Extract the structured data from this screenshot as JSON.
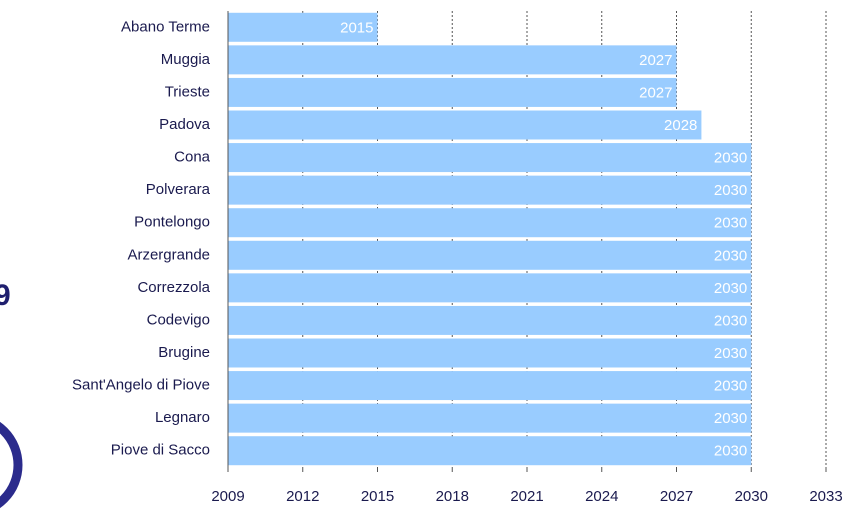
{
  "chart_data": {
    "type": "bar",
    "orientation": "horizontal",
    "categories": [
      "Abano Terme",
      "Muggia",
      "Trieste",
      "Padova",
      "Cona",
      "Polverara",
      "Pontelongo",
      "Arzergrande",
      "Correzzola",
      "Codevigo",
      "Brugine",
      "Sant'Angelo di Piove",
      "Legnaro",
      "Piove di Sacco"
    ],
    "values": [
      2015,
      2027,
      2027,
      2028,
      2030,
      2030,
      2030,
      2030,
      2030,
      2030,
      2030,
      2030,
      2030,
      2030
    ],
    "color": "#99ccff",
    "xlim": [
      2009,
      2033
    ],
    "xticks": [
      2009,
      2012,
      2015,
      2018,
      2021,
      2024,
      2027,
      2030,
      2033
    ],
    "grid": true,
    "annotation": "9"
  }
}
